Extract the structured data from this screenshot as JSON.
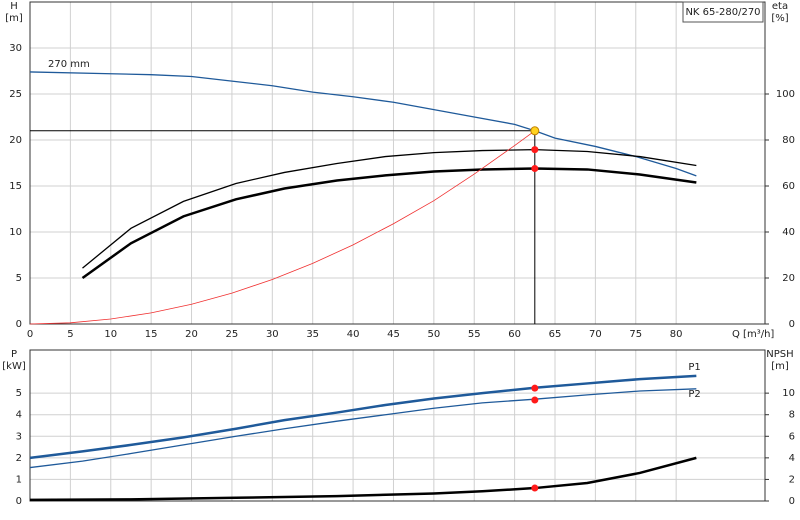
{
  "chart_data": [
    {
      "type": "line",
      "title": "NK 65-280/270",
      "ylabel": [
        "H",
        "[m]"
      ],
      "y2label": [
        "eta",
        "[%]"
      ],
      "xlabel": "Q [m³/h]",
      "xlim": [
        0,
        91
      ],
      "xticks": [
        0,
        5,
        10,
        15,
        20,
        25,
        30,
        35,
        40,
        45,
        50,
        55,
        60,
        65,
        70,
        75,
        80
      ],
      "ylim": [
        0,
        35
      ],
      "yticks": [
        0,
        5,
        10,
        15,
        20,
        25,
        30
      ],
      "y2lim": [
        0,
        140
      ],
      "y2ticks": [
        0,
        20,
        40,
        60,
        80,
        100
      ],
      "grid": true,
      "series": [
        {
          "name": "270 mm",
          "color": "#1f5a9a",
          "x": [
            0,
            10,
            15,
            20,
            25,
            30,
            35,
            40,
            45,
            50,
            55,
            60,
            62.5,
            65,
            70,
            75,
            80,
            82.5
          ],
          "values": [
            27.4,
            27.2,
            27.1,
            26.9,
            26.4,
            25.9,
            25.2,
            24.7,
            24.1,
            23.3,
            22.5,
            21.7,
            21.0,
            20.2,
            19.3,
            18.2,
            16.9,
            16.1
          ]
        },
        {
          "color": "#000000",
          "axis": "y2",
          "x": [
            6.5,
            12.5,
            19,
            25.5,
            31.5,
            38,
            44,
            50,
            56,
            62.5,
            69,
            75.5,
            82.5
          ],
          "values": [
            24.3,
            41.6,
            53.3,
            61.1,
            65.9,
            69.8,
            72.8,
            74.5,
            75.4,
            75.8,
            75.0,
            72.8,
            68.9
          ]
        },
        {
          "color": "#000000",
          "axis": "y2",
          "width": 2.5,
          "x": [
            6.5,
            12.5,
            19,
            25.5,
            31.5,
            38,
            44,
            50,
            56,
            62.5,
            69,
            75.5,
            82.5
          ],
          "values": [
            20.0,
            35.1,
            46.8,
            54.2,
            58.9,
            62.4,
            64.6,
            66.3,
            67.2,
            67.6,
            67.2,
            65.0,
            61.5
          ]
        },
        {
          "color": "#f03030",
          "width": 0.8,
          "x": [
            0,
            5,
            10,
            15,
            20,
            25,
            30,
            35,
            40,
            45,
            50,
            55,
            60,
            62.5
          ],
          "values": [
            0,
            0.13,
            0.54,
            1.21,
            2.15,
            3.36,
            4.84,
            6.59,
            8.6,
            10.9,
            13.4,
            16.3,
            19.4,
            21.0
          ]
        }
      ],
      "duty_point": {
        "x": 62.5,
        "y": 21.0,
        "color": "#ffd21f"
      },
      "markers": [
        {
          "x": 62.5,
          "y": 75.8,
          "axis": "y2",
          "color": "#ff1a1a"
        },
        {
          "x": 62.5,
          "y": 67.6,
          "axis": "y2",
          "color": "#ff1a1a"
        }
      ]
    },
    {
      "type": "line",
      "ylabel": [
        "P",
        "[kW]"
      ],
      "y2label": [
        "NPSH",
        "[m]"
      ],
      "xlim": [
        0,
        91
      ],
      "xticks": [
        0,
        5,
        10,
        15,
        20,
        25,
        30,
        35,
        40,
        45,
        50,
        55,
        60,
        65,
        70,
        75,
        80
      ],
      "ylim": [
        0,
        7
      ],
      "yticks": [
        0,
        1,
        2,
        3,
        4,
        5
      ],
      "y2lim": [
        0,
        14
      ],
      "y2ticks": [
        0,
        2,
        4,
        6,
        8,
        10
      ],
      "grid": true,
      "series": [
        {
          "name": "P1",
          "color": "#1f5a9a",
          "width": 2.5,
          "x": [
            0,
            6.5,
            12.5,
            19,
            25.5,
            31.5,
            38,
            44,
            50,
            56,
            62.5,
            69,
            75.5,
            82.5
          ],
          "values": [
            2.0,
            2.3,
            2.6,
            2.95,
            3.35,
            3.75,
            4.1,
            4.45,
            4.75,
            5.0,
            5.25,
            5.45,
            5.65,
            5.8
          ]
        },
        {
          "name": "P2",
          "color": "#1f5a9a",
          "x": [
            0,
            6.5,
            12.5,
            19,
            25.5,
            31.5,
            38,
            44,
            50,
            56,
            62.5,
            69,
            75.5,
            82.5
          ],
          "values": [
            1.55,
            1.85,
            2.2,
            2.6,
            3.0,
            3.35,
            3.7,
            4.0,
            4.3,
            4.55,
            4.72,
            4.92,
            5.1,
            5.2
          ]
        },
        {
          "color": "#000000",
          "axis": "y2",
          "width": 2.5,
          "x": [
            0,
            12.5,
            25.5,
            38,
            50,
            56,
            62.5,
            69,
            75.5,
            82.5
          ],
          "values": [
            0.1,
            0.15,
            0.3,
            0.45,
            0.7,
            0.9,
            1.2,
            1.67,
            2.6,
            4.0
          ]
        }
      ],
      "markers": [
        {
          "x": 62.5,
          "y": 5.23,
          "color": "#ff1a1a"
        },
        {
          "x": 62.5,
          "y": 4.68,
          "color": "#ff1a1a"
        },
        {
          "x": 62.5,
          "y": 1.2,
          "axis": "y2",
          "color": "#ff1a1a"
        }
      ]
    }
  ]
}
